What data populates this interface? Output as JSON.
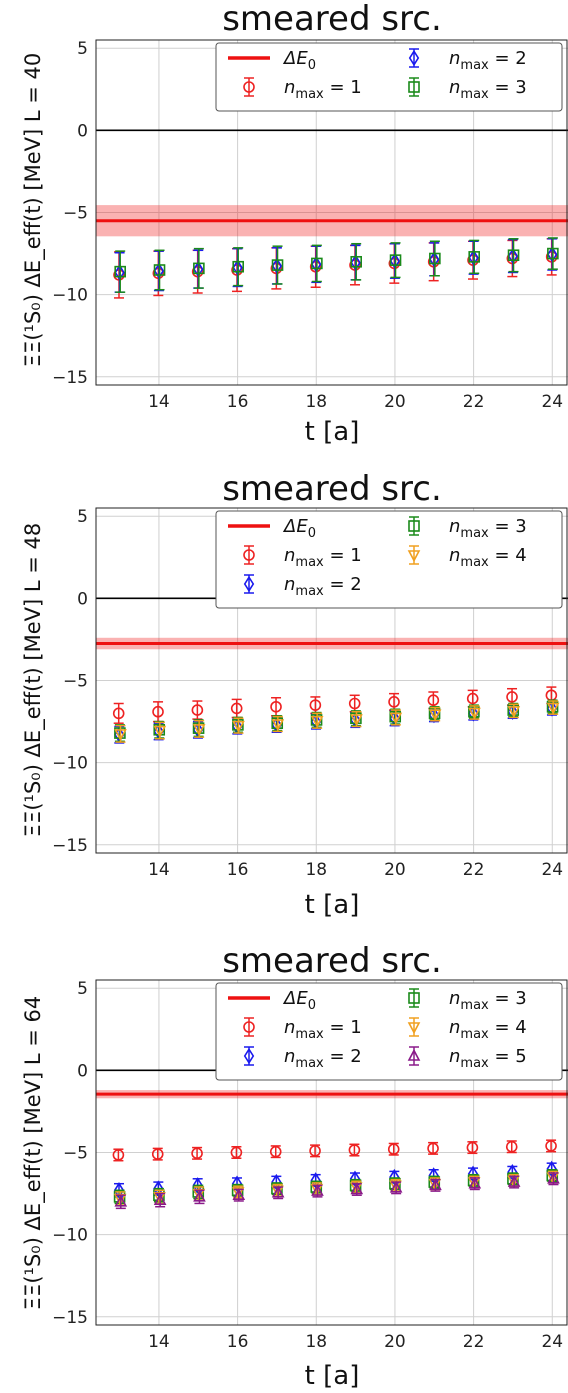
{
  "charts": [
    {
      "title": "smeared src.",
      "ylabel": "ΞΞ(¹S₀) ΔE_eff(t) [MeV] L = 40",
      "xlabel": "t [a]",
      "legend_cols": 2
    },
    {
      "title": "smeared src.",
      "ylabel": "ΞΞ(¹S₀) ΔE_eff(t) [MeV] L = 48",
      "xlabel": "t [a]",
      "legend_cols": 2
    },
    {
      "title": "smeared src.",
      "ylabel": "ΞΞ(¹S₀) ΔE_eff(t) [MeV] L = 64",
      "xlabel": "t [a]",
      "legend_cols": 2
    }
  ],
  "chart_data": [
    {
      "type": "scatter",
      "title": "smeared src.",
      "xlabel": "t [a]",
      "ylabel": "ΞΞ(¹S₀) ΔE_eff(t) [MeV] L = 40",
      "xlim": [
        12.4,
        24.4
      ],
      "ylim": [
        -15.5,
        5.5
      ],
      "xticks": [
        14,
        16,
        18,
        20,
        22,
        24
      ],
      "yticks": [
        5,
        0,
        -5,
        -10,
        -15
      ],
      "ytick_labels": [
        "5",
        "0",
        "−5",
        "−10",
        "−15"
      ],
      "grid": true,
      "legend_position": "top-right",
      "band": {
        "name": "ΔE_0",
        "value": -5.5,
        "err": 0.95,
        "color": "#ee1111"
      },
      "x": [
        13,
        14,
        15,
        16,
        17,
        18,
        19,
        20,
        21,
        22,
        23,
        24
      ],
      "series": [
        {
          "name": "n_max = 1",
          "marker": "circle",
          "color": "#ee2222",
          "values": [
            -8.8,
            -8.7,
            -8.6,
            -8.5,
            -8.4,
            -8.3,
            -8.2,
            -8.1,
            -8.0,
            -7.9,
            -7.8,
            -7.7
          ],
          "errors": [
            1.4,
            1.35,
            1.3,
            1.3,
            1.25,
            1.25,
            1.2,
            1.2,
            1.15,
            1.15,
            1.1,
            1.1
          ]
        },
        {
          "name": "n_max = 2",
          "marker": "diamond",
          "color": "#1a1aee",
          "values": [
            -8.65,
            -8.55,
            -8.45,
            -8.35,
            -8.25,
            -8.15,
            -8.05,
            -7.95,
            -7.85,
            -7.75,
            -7.65,
            -7.55
          ],
          "errors": [
            1.2,
            1.2,
            1.15,
            1.15,
            1.1,
            1.1,
            1.05,
            1.05,
            1.0,
            1.0,
            1.0,
            0.95
          ]
        },
        {
          "name": "n_max = 3",
          "marker": "square",
          "color": "#1a8a1a",
          "values": [
            -8.6,
            -8.5,
            -8.4,
            -8.3,
            -8.2,
            -8.1,
            -8.0,
            -7.9,
            -7.8,
            -7.7,
            -7.6,
            -7.5
          ],
          "errors": [
            1.25,
            1.2,
            1.2,
            1.15,
            1.15,
            1.1,
            1.1,
            1.05,
            1.05,
            1.0,
            1.0,
            0.95
          ]
        }
      ]
    },
    {
      "type": "scatter",
      "title": "smeared src.",
      "xlabel": "t [a]",
      "ylabel": "ΞΞ(¹S₀) ΔE_eff(t) [MeV] L = 48",
      "xlim": [
        12.4,
        24.4
      ],
      "ylim": [
        -15.5,
        5.5
      ],
      "xticks": [
        14,
        16,
        18,
        20,
        22,
        24
      ],
      "yticks": [
        5,
        0,
        -5,
        -10,
        -15
      ],
      "ytick_labels": [
        "5",
        "0",
        "−5",
        "−10",
        "−15"
      ],
      "grid": true,
      "legend_position": "top-right",
      "band": {
        "name": "ΔE_0",
        "value": -2.75,
        "err": 0.35,
        "color": "#ee1111"
      },
      "x": [
        13,
        14,
        15,
        16,
        17,
        18,
        19,
        20,
        21,
        22,
        23,
        24
      ],
      "series": [
        {
          "name": "n_max = 1",
          "marker": "circle",
          "color": "#ee2222",
          "values": [
            -7.0,
            -6.9,
            -6.8,
            -6.7,
            -6.6,
            -6.5,
            -6.4,
            -6.3,
            -6.2,
            -6.1,
            -6.0,
            -5.9
          ],
          "errors": [
            0.6,
            0.6,
            0.55,
            0.55,
            0.55,
            0.5,
            0.5,
            0.5,
            0.5,
            0.5,
            0.5,
            0.5
          ]
        },
        {
          "name": "n_max = 2",
          "marker": "diamond",
          "color": "#1a1aee",
          "values": [
            -8.3,
            -8.1,
            -8.0,
            -7.8,
            -7.7,
            -7.5,
            -7.4,
            -7.3,
            -7.1,
            -7.0,
            -6.9,
            -6.7
          ],
          "errors": [
            0.5,
            0.5,
            0.5,
            0.45,
            0.45,
            0.45,
            0.45,
            0.45,
            0.4,
            0.4,
            0.4,
            0.4
          ]
        },
        {
          "name": "n_max = 3",
          "marker": "square",
          "color": "#1a8a1a",
          "values": [
            -8.2,
            -8.0,
            -7.9,
            -7.7,
            -7.6,
            -7.4,
            -7.3,
            -7.2,
            -7.0,
            -6.9,
            -6.8,
            -6.6
          ],
          "errors": [
            0.5,
            0.5,
            0.5,
            0.45,
            0.45,
            0.45,
            0.45,
            0.45,
            0.4,
            0.4,
            0.4,
            0.4
          ]
        },
        {
          "name": "n_max = 4",
          "marker": "triangle-down",
          "color": "#f0a020",
          "values": [
            -8.25,
            -8.05,
            -7.95,
            -7.75,
            -7.65,
            -7.45,
            -7.35,
            -7.25,
            -7.05,
            -6.95,
            -6.85,
            -6.65
          ],
          "errors": [
            0.5,
            0.5,
            0.5,
            0.45,
            0.45,
            0.45,
            0.45,
            0.45,
            0.4,
            0.4,
            0.4,
            0.4
          ]
        }
      ]
    },
    {
      "type": "scatter",
      "title": "smeared src.",
      "xlabel": "t [a]",
      "ylabel": "ΞΞ(¹S₀) ΔE_eff(t) [MeV] L = 64",
      "xlim": [
        12.4,
        24.4
      ],
      "ylim": [
        -15.5,
        5.5
      ],
      "xticks": [
        14,
        16,
        18,
        20,
        22,
        24
      ],
      "yticks": [
        5,
        0,
        -5,
        -10,
        -15
      ],
      "ytick_labels": [
        "5",
        "0",
        "−5",
        "−10",
        "−15"
      ],
      "grid": true,
      "legend_position": "top-right",
      "band": {
        "name": "ΔE_0",
        "value": -1.45,
        "err": 0.25,
        "color": "#ee1111"
      },
      "x": [
        13,
        14,
        15,
        16,
        17,
        18,
        19,
        20,
        21,
        22,
        23,
        24
      ],
      "series": [
        {
          "name": "n_max = 1",
          "marker": "circle",
          "color": "#ee2222",
          "values": [
            -5.15,
            -5.1,
            -5.05,
            -5.0,
            -4.95,
            -4.9,
            -4.85,
            -4.8,
            -4.75,
            -4.7,
            -4.65,
            -4.6
          ],
          "errors": [
            0.35,
            0.35,
            0.35,
            0.35,
            0.35,
            0.35,
            0.35,
            0.35,
            0.35,
            0.35,
            0.35,
            0.35
          ]
        },
        {
          "name": "n_max = 2",
          "marker": "diamond",
          "color": "#1a1aee",
          "values": [
            -7.3,
            -7.2,
            -7.0,
            -6.9,
            -6.8,
            -6.7,
            -6.6,
            -6.5,
            -6.4,
            -6.3,
            -6.2,
            -6.0
          ],
          "errors": [
            0.4,
            0.4,
            0.4,
            0.35,
            0.35,
            0.35,
            0.35,
            0.35,
            0.35,
            0.35,
            0.35,
            0.35
          ]
        },
        {
          "name": "n_max = 3",
          "marker": "square",
          "color": "#1a8a1a",
          "values": [
            -7.7,
            -7.6,
            -7.4,
            -7.3,
            -7.2,
            -7.1,
            -7.0,
            -6.9,
            -6.8,
            -6.7,
            -6.6,
            -6.4
          ],
          "errors": [
            0.4,
            0.4,
            0.4,
            0.35,
            0.35,
            0.35,
            0.35,
            0.35,
            0.35,
            0.35,
            0.35,
            0.35
          ]
        },
        {
          "name": "n_max = 4",
          "marker": "triangle-down",
          "color": "#f0a020",
          "values": [
            -7.8,
            -7.7,
            -7.5,
            -7.4,
            -7.3,
            -7.2,
            -7.1,
            -7.0,
            -6.9,
            -6.8,
            -6.7,
            -6.5
          ],
          "errors": [
            0.4,
            0.4,
            0.4,
            0.35,
            0.35,
            0.35,
            0.35,
            0.35,
            0.35,
            0.35,
            0.35,
            0.35
          ]
        },
        {
          "name": "n_max = 5",
          "marker": "triangle-up",
          "color": "#8a1a8a",
          "values": [
            -8.0,
            -7.9,
            -7.7,
            -7.6,
            -7.45,
            -7.35,
            -7.25,
            -7.15,
            -7.0,
            -6.9,
            -6.8,
            -6.6
          ],
          "errors": [
            0.4,
            0.4,
            0.4,
            0.35,
            0.35,
            0.35,
            0.35,
            0.35,
            0.35,
            0.35,
            0.35,
            0.35
          ]
        }
      ]
    }
  ]
}
